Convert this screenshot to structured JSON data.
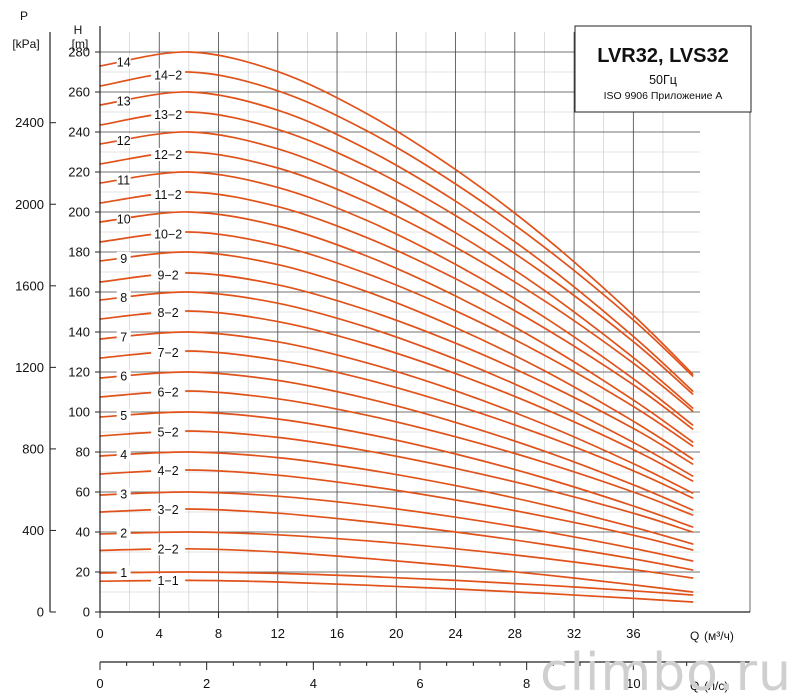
{
  "chart_data": {
    "type": "line",
    "title": "LVR32, LVS32",
    "subtitle": "50Гц",
    "standard": "ISO 9906 Приложение A",
    "ylabel_left": {
      "symbol": "P",
      "unit": "[kPa]"
    },
    "ylabel_right": {
      "symbol": "H",
      "unit": "[m]"
    },
    "xlabel": {
      "symbol": "Q",
      "unit": "(м³/ч)"
    },
    "xlabel_secondary": {
      "symbol": "Q",
      "unit": "(л/с)"
    },
    "x_ticks": [
      0,
      4,
      8,
      12,
      16,
      20,
      24,
      28,
      32,
      36
    ],
    "x_secondary_ticks": [
      0,
      2,
      4,
      6,
      8,
      10
    ],
    "h_ticks": [
      0,
      20,
      40,
      60,
      80,
      100,
      120,
      140,
      160,
      180,
      200,
      220,
      240,
      260,
      280
    ],
    "p_ticks": [
      0,
      400,
      800,
      1200,
      1600,
      2000,
      2400
    ],
    "xlim": [
      0,
      40.5
    ],
    "ylim": [
      0,
      290
    ],
    "grid": true,
    "watermark": "climbo.ru",
    "series": [
      {
        "name": "1-1",
        "label": "1−1",
        "x": [
          0,
          6,
          12,
          18,
          24,
          30,
          36,
          40
        ],
        "y": [
          15.4,
          15.8,
          15.0,
          13.4,
          11.5,
          9.3,
          6.8,
          5.0
        ]
      },
      {
        "name": "1",
        "label": "1",
        "x": [
          0,
          6,
          12,
          18,
          24,
          30,
          36,
          40
        ],
        "y": [
          19.5,
          20.0,
          19.3,
          17.8,
          15.8,
          13.4,
          10.6,
          8.5
        ]
      },
      {
        "name": "2-2",
        "label": "2−2",
        "x": [
          0,
          6,
          12,
          18,
          24,
          30,
          36,
          40
        ],
        "y": [
          30.8,
          31.6,
          30.0,
          26.8,
          23.0,
          18.6,
          13.6,
          10.0
        ]
      },
      {
        "name": "2",
        "label": "2",
        "x": [
          0,
          6,
          12,
          18,
          24,
          30,
          36,
          40
        ],
        "y": [
          39.0,
          40.0,
          38.6,
          35.6,
          31.6,
          26.8,
          21.2,
          17.0
        ]
      },
      {
        "name": "3-2",
        "label": "3−2",
        "x": [
          0,
          6,
          12,
          18,
          24,
          30,
          36,
          40
        ],
        "y": [
          50.0,
          51.5,
          49.4,
          45.2,
          40.0,
          33.8,
          26.6,
          21.0
        ]
      },
      {
        "name": "3",
        "label": "3",
        "x": [
          0,
          6,
          12,
          18,
          24,
          30,
          36,
          40
        ],
        "y": [
          58.5,
          60.0,
          57.9,
          53.4,
          47.4,
          40.2,
          31.8,
          25.5
        ]
      },
      {
        "name": "4-2",
        "label": "4−2",
        "x": [
          0,
          6,
          12,
          18,
          24,
          30,
          36,
          40
        ],
        "y": [
          69.0,
          71.0,
          68.4,
          63.0,
          56.0,
          47.8,
          38.4,
          31.0
        ]
      },
      {
        "name": "4",
        "label": "4",
        "x": [
          0,
          6,
          12,
          18,
          24,
          30,
          36,
          40
        ],
        "y": [
          78.0,
          80.0,
          77.2,
          71.2,
          63.2,
          53.6,
          42.4,
          34.0
        ]
      },
      {
        "name": "5-2",
        "label": "5−2",
        "x": [
          0,
          6,
          12,
          18,
          24,
          30,
          36,
          40
        ],
        "y": [
          88.0,
          90.5,
          87.3,
          80.6,
          71.8,
          61.4,
          49.4,
          40.0
        ]
      },
      {
        "name": "5",
        "label": "5",
        "x": [
          0,
          6,
          12,
          18,
          24,
          30,
          36,
          40
        ],
        "y": [
          97.5,
          100.0,
          96.5,
          89.0,
          79.0,
          67.0,
          53.0,
          42.5
        ]
      },
      {
        "name": "6-2",
        "label": "6−2",
        "x": [
          0,
          6,
          12,
          18,
          24,
          30,
          36,
          40
        ],
        "y": [
          107.5,
          110.5,
          106.6,
          98.4,
          87.6,
          74.8,
          60.0,
          48.5
        ]
      },
      {
        "name": "6",
        "label": "6",
        "x": [
          0,
          6,
          12,
          18,
          24,
          30,
          36,
          40
        ],
        "y": [
          117.0,
          120.0,
          115.8,
          106.8,
          94.8,
          80.4,
          63.6,
          51.0
        ]
      },
      {
        "name": "7-2",
        "label": "7−2",
        "x": [
          0,
          6,
          12,
          18,
          24,
          30,
          36,
          40
        ],
        "y": [
          127.0,
          130.5,
          125.9,
          116.2,
          103.4,
          88.2,
          70.6,
          57.0
        ]
      },
      {
        "name": "7",
        "label": "7",
        "x": [
          0,
          6,
          12,
          18,
          24,
          30,
          36,
          40
        ],
        "y": [
          136.5,
          140.0,
          135.1,
          124.6,
          110.6,
          93.8,
          74.2,
          59.5
        ]
      },
      {
        "name": "8-2",
        "label": "8−2",
        "x": [
          0,
          6,
          12,
          18,
          24,
          30,
          36,
          40
        ],
        "y": [
          146.5,
          150.5,
          145.2,
          134.0,
          119.2,
          101.6,
          81.2,
          65.5
        ]
      },
      {
        "name": "8",
        "label": "8",
        "x": [
          0,
          6,
          12,
          18,
          24,
          30,
          36,
          40
        ],
        "y": [
          156.0,
          160.0,
          154.4,
          142.4,
          126.4,
          107.2,
          84.8,
          68.0
        ]
      },
      {
        "name": "9-2",
        "label": "9−2",
        "x": [
          0,
          6,
          12,
          18,
          24,
          30,
          36,
          40
        ],
        "y": [
          165.0,
          169.5,
          163.6,
          151.0,
          134.4,
          114.6,
          91.8,
          74.0
        ]
      },
      {
        "name": "9",
        "label": "9",
        "x": [
          0,
          6,
          12,
          18,
          24,
          30,
          36,
          40
        ],
        "y": [
          175.5,
          180.0,
          173.7,
          160.2,
          142.2,
          120.6,
          95.4,
          76.5
        ]
      },
      {
        "name": "10-2",
        "label": "10−2",
        "x": [
          0,
          6,
          12,
          18,
          24,
          30,
          36,
          40
        ],
        "y": [
          185.0,
          190.0,
          183.3,
          169.2,
          150.6,
          128.4,
          102.8,
          83.0
        ]
      },
      {
        "name": "10",
        "label": "10",
        "x": [
          0,
          6,
          12,
          18,
          24,
          30,
          36,
          40
        ],
        "y": [
          195.0,
          200.0,
          193.0,
          178.0,
          158.0,
          134.0,
          106.0,
          85.0
        ]
      },
      {
        "name": "11-2",
        "label": "11−2",
        "x": [
          0,
          6,
          12,
          18,
          24,
          30,
          36,
          40
        ],
        "y": [
          204.5,
          210.0,
          202.7,
          187.2,
          166.6,
          142.0,
          113.6,
          91.5
        ]
      },
      {
        "name": "11",
        "label": "11",
        "x": [
          0,
          6,
          12,
          18,
          24,
          30,
          36,
          40
        ],
        "y": [
          214.5,
          220.0,
          212.3,
          195.8,
          173.8,
          147.4,
          116.6,
          93.5
        ]
      },
      {
        "name": "12-2",
        "label": "12−2",
        "x": [
          0,
          6,
          12,
          18,
          24,
          30,
          36,
          40
        ],
        "y": [
          224.0,
          230.0,
          222.0,
          205.0,
          182.4,
          155.6,
          124.4,
          100.5
        ]
      },
      {
        "name": "12",
        "label": "12",
        "x": [
          0,
          6,
          12,
          18,
          24,
          30,
          36,
          40
        ],
        "y": [
          234.0,
          240.0,
          231.6,
          213.6,
          189.6,
          160.8,
          127.2,
          102.0
        ]
      },
      {
        "name": "13-2",
        "label": "13−2",
        "x": [
          0,
          6,
          12,
          18,
          24,
          30,
          36,
          40
        ],
        "y": [
          243.5,
          250.0,
          241.3,
          222.8,
          198.2,
          169.0,
          135.2,
          109.0
        ]
      },
      {
        "name": "13",
        "label": "13",
        "x": [
          0,
          6,
          12,
          18,
          24,
          30,
          36,
          40
        ],
        "y": [
          253.5,
          260.0,
          250.9,
          231.4,
          205.4,
          174.2,
          137.8,
          110.5
        ]
      },
      {
        "name": "14-2",
        "label": "14−2",
        "x": [
          0,
          6,
          12,
          18,
          24,
          30,
          36,
          40
        ],
        "y": [
          263.0,
          270.0,
          260.6,
          240.6,
          214.0,
          182.4,
          146.0,
          118.0
        ]
      },
      {
        "name": "14",
        "label": "14",
        "x": [
          0,
          6,
          12,
          18,
          24,
          30,
          36,
          40
        ],
        "y": [
          273.0,
          280.0,
          270.2,
          249.2,
          221.2,
          187.6,
          148.4,
          119.0
        ]
      }
    ]
  }
}
